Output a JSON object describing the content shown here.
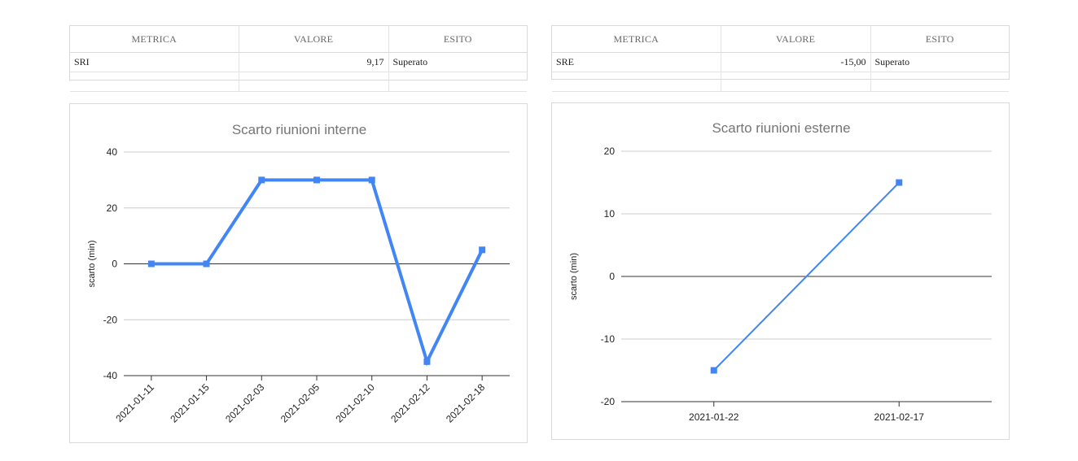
{
  "tables": [
    {
      "headers": [
        "METRICA",
        "VALORE",
        "ESITO"
      ],
      "rows": [
        [
          "SRI",
          "9,17",
          "Superato"
        ]
      ]
    },
    {
      "headers": [
        "METRICA",
        "VALORE",
        "ESITO"
      ],
      "rows": [
        [
          "SRE",
          "-15,00",
          "Superato"
        ]
      ]
    }
  ],
  "chart_data": [
    {
      "type": "line",
      "title": "Scarto riunioni interne",
      "xlabel": "",
      "ylabel": "scarto (min)",
      "categories": [
        "2021-01-11",
        "2021-01-15",
        "2021-02-03",
        "2021-02-05",
        "2021-02-10",
        "2021-02-12",
        "2021-02-18"
      ],
      "series": [
        {
          "values": [
            0,
            0,
            30,
            30,
            30,
            -35,
            5
          ]
        }
      ],
      "ylim": [
        -40,
        40
      ],
      "yticks": [
        40,
        20,
        0,
        -20,
        -40
      ],
      "yticklabels": [
        "40",
        "20",
        "0",
        "-20",
        "-40"
      ],
      "grid": true,
      "legend": "none",
      "x_label_rotation": "45deg",
      "color": "#4285f4",
      "marker": "square",
      "line_weight": "thick"
    },
    {
      "type": "line",
      "title": "Scarto riunioni esterne",
      "xlabel": "",
      "ylabel": "scarto (min)",
      "categories": [
        "2021-01-22",
        "2021-02-17"
      ],
      "series": [
        {
          "values": [
            -15,
            15
          ]
        }
      ],
      "ylim": [
        -20,
        20
      ],
      "yticks": [
        20,
        10,
        0,
        -10,
        -20
      ],
      "yticklabels": [
        "20",
        "10",
        "0",
        "-10",
        "-20"
      ],
      "grid": true,
      "legend": "none",
      "x_label_rotation": "none",
      "color": "#4285f4",
      "marker": "square",
      "line_weight": "thin"
    }
  ]
}
